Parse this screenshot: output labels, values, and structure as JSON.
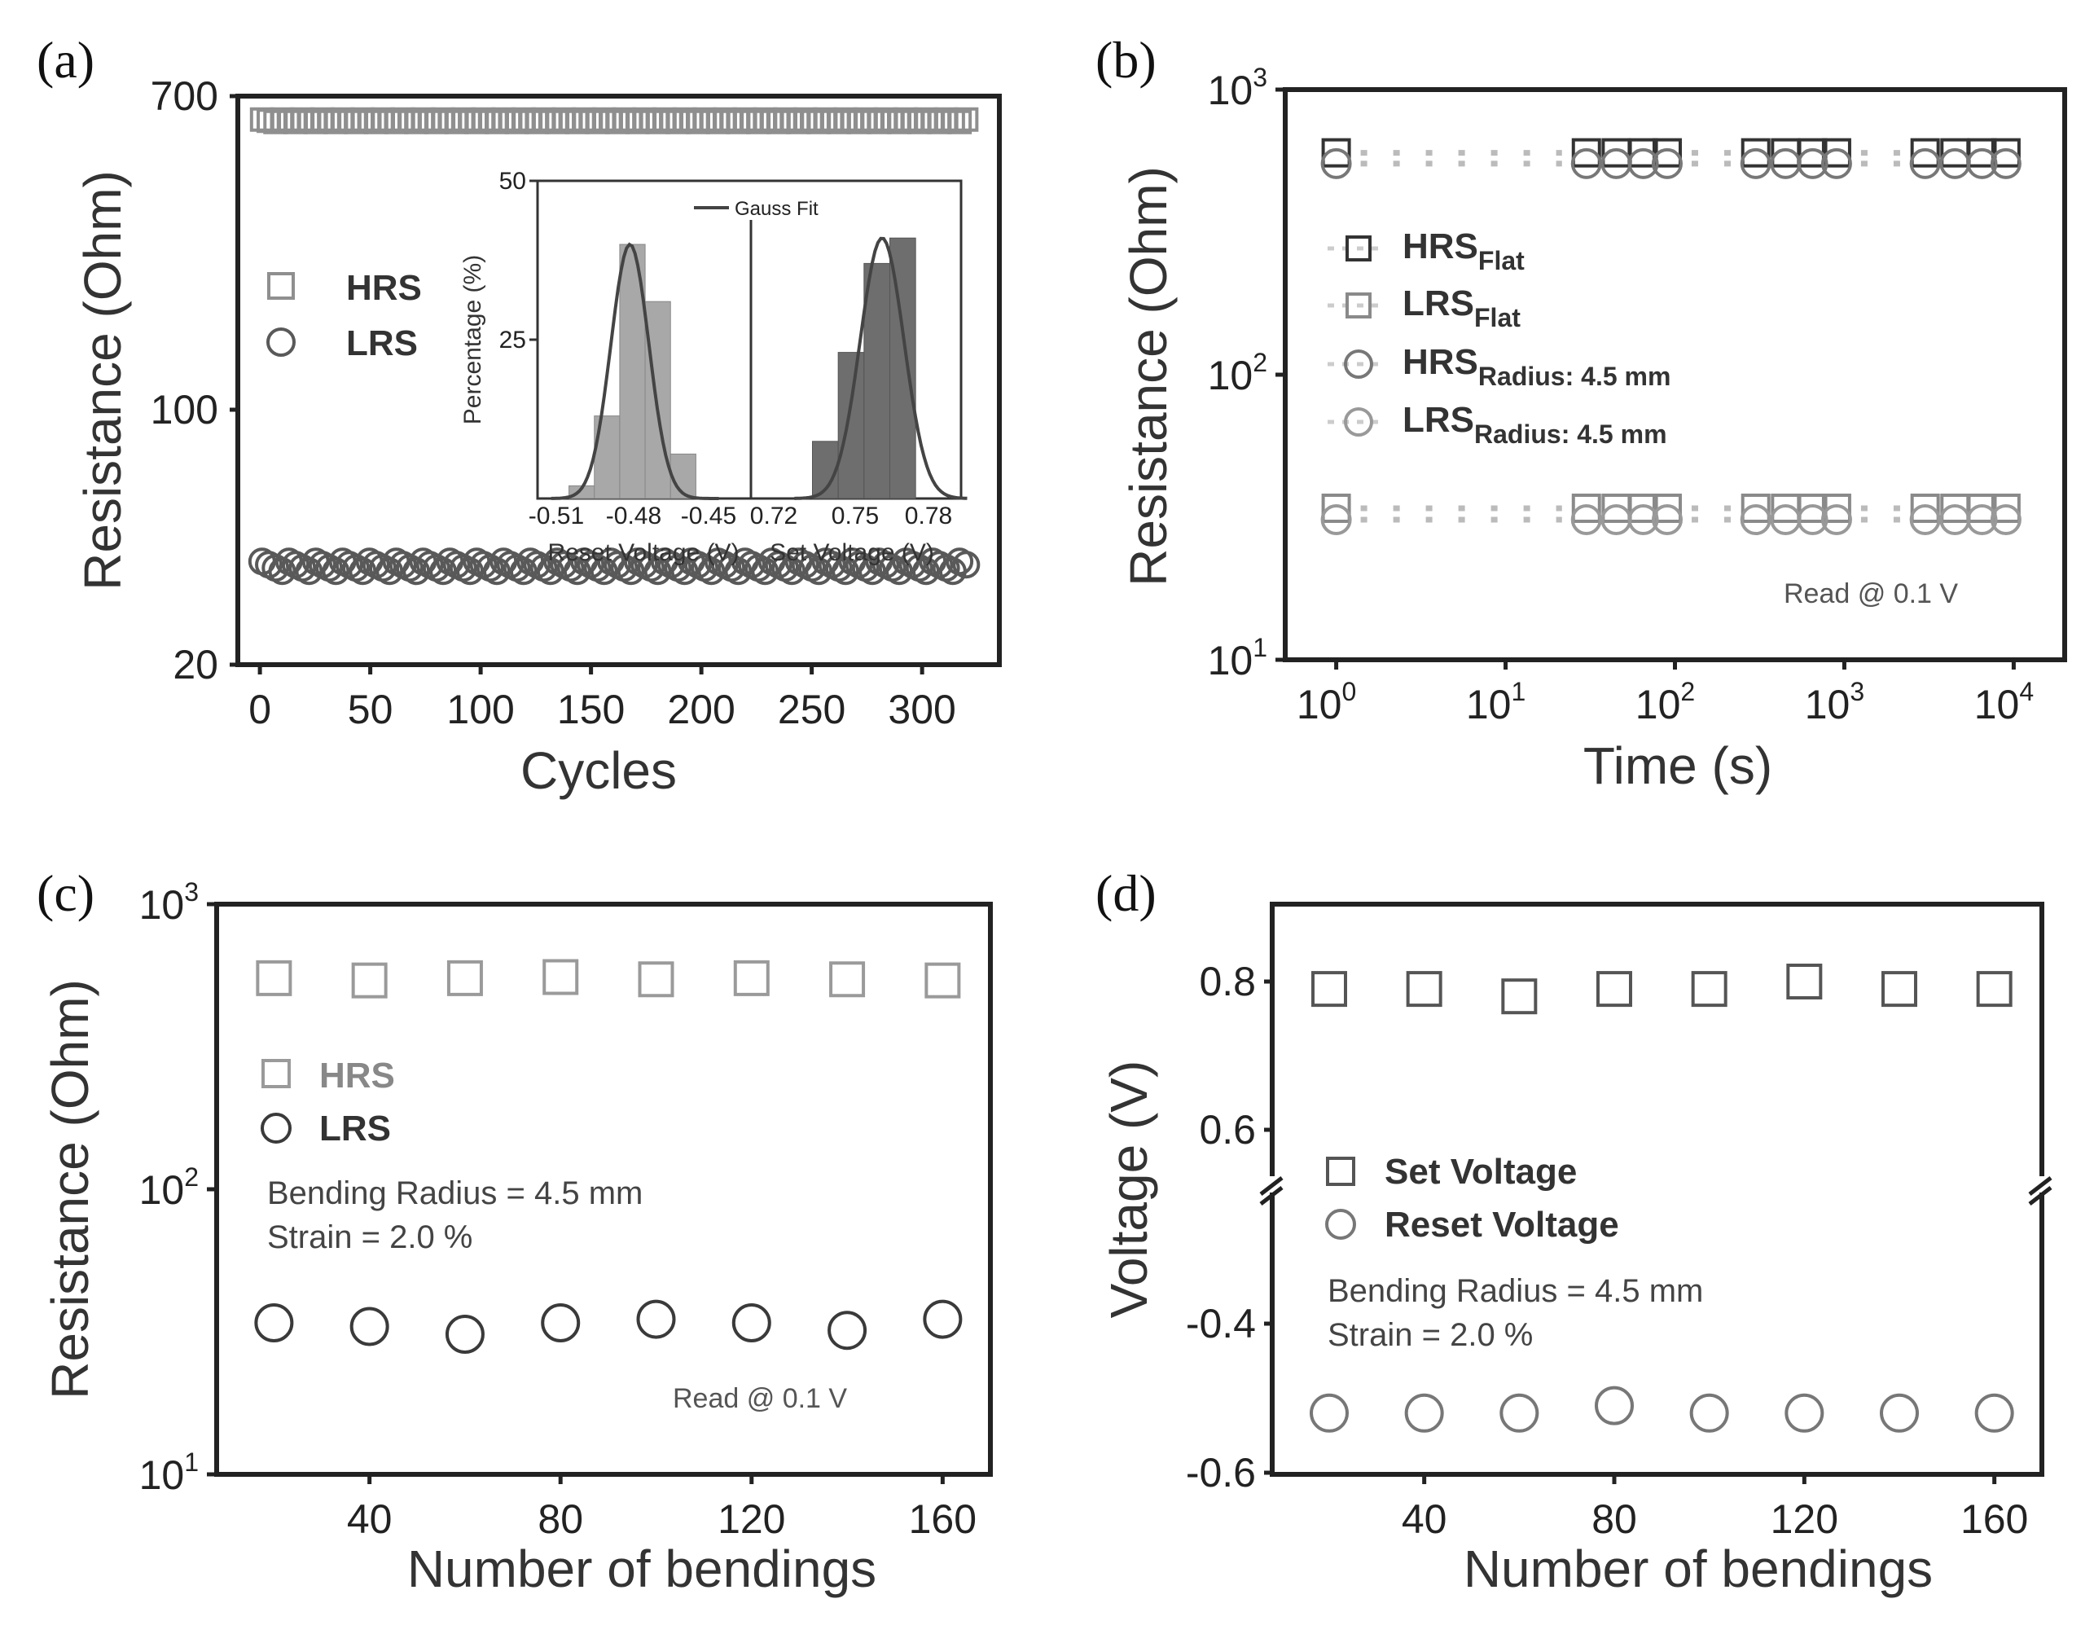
{
  "colors": {
    "hrs_a": "#8f8f8f",
    "lrs_a": "#595959",
    "dark": "#3a3a3a",
    "light": "#9a9a9a",
    "bar": "#a8a8a8",
    "bar_dark": "#6e6e6e"
  },
  "chart_data": [
    {
      "panel": "(a)",
      "type": "scatter",
      "xlabel": "Cycles",
      "ylabel": "Resistance (Ohm)",
      "xlim": [
        -10,
        335
      ],
      "ylim": [
        20,
        700
      ],
      "yscale": "log",
      "xticks": [
        "0",
        "50",
        "100",
        "150",
        "200",
        "250",
        "300"
      ],
      "yticks": [
        "20",
        "100",
        "700"
      ],
      "legend": [
        "HRS",
        "LRS"
      ],
      "series": [
        {
          "name": "HRS",
          "x_range": [
            1,
            320
          ],
          "count": 106,
          "value": 600
        },
        {
          "name": "LRS",
          "x_range": [
            1,
            320
          ],
          "count": 106,
          "value": 37
        }
      ]
    },
    {
      "panel": "(a) inset",
      "type": "bar",
      "ylabel": "Percentage (%)",
      "ylim": [
        0,
        50
      ],
      "yticks": [
        "25",
        "50"
      ],
      "legend": [
        "Gauss Fit"
      ],
      "reset": {
        "xlabel": "Reset  Voltage (V)",
        "xticks": [
          "-0.51",
          "-0.48",
          "-0.45"
        ],
        "bins": [
          -0.5,
          -0.49,
          -0.48,
          -0.47,
          -0.46
        ],
        "values": [
          2,
          13,
          40,
          31,
          7
        ]
      },
      "set": {
        "xlabel": "Set  Voltage (V)",
        "xticks": [
          "0.72",
          "0.75",
          "0.78"
        ],
        "bins": [
          0.74,
          0.75,
          0.76,
          0.77
        ],
        "values": [
          9,
          23,
          37,
          41
        ]
      }
    },
    {
      "panel": "(b)",
      "type": "scatter",
      "xlabel": "Time (s)",
      "ylabel": "Resistance (Ohm)",
      "xscale": "log",
      "yscale": "log",
      "xlim": [
        0.5,
        20000
      ],
      "ylim": [
        10,
        1000
      ],
      "xticks_base": [
        "10",
        "10",
        "10",
        "10",
        "10"
      ],
      "xticks_exp": [
        "0",
        "1",
        "2",
        "3",
        "4"
      ],
      "yticks_base": [
        "10",
        "10",
        "10"
      ],
      "yticks_exp": [
        "1",
        "2",
        "3"
      ],
      "legend": [
        {
          "main": "HRS",
          "sub": "Flat"
        },
        {
          "main": "LRS",
          "sub": "Flat"
        },
        {
          "main": "HRS",
          "sub": "Radius: 4.5 mm"
        },
        {
          "main": "LRS",
          "sub": "Radius: 4.5 mm"
        }
      ],
      "annotation": "Read @ 0.1 V",
      "x": [
        1,
        30,
        45,
        65,
        90,
        300,
        450,
        650,
        900,
        3000,
        4500,
        6500,
        9000
      ],
      "series": [
        {
          "name": "HRS Flat",
          "value": 600
        },
        {
          "name": "LRS Flat",
          "value": 34
        },
        {
          "name": "HRS Radius: 4.5 mm",
          "value": 550
        },
        {
          "name": "LRS Radius: 4.5 mm",
          "value": 31
        }
      ]
    },
    {
      "panel": "(c)",
      "type": "scatter",
      "xlabel": "Number of bendings",
      "ylabel": "Resistance (Ohm)",
      "yscale": "log",
      "xlim": [
        8,
        170
      ],
      "ylim": [
        10,
        1000
      ],
      "xticks": [
        "40",
        "80",
        "120",
        "160"
      ],
      "yticks_base": [
        "10",
        "10",
        "10"
      ],
      "yticks_exp": [
        "1",
        "2",
        "3"
      ],
      "legend": [
        "HRS",
        "LRS"
      ],
      "annotations": [
        "Bending Radius = 4.5 mm",
        "Strain = 2.0 %",
        "Read @ 0.1 V"
      ],
      "x": [
        20,
        40,
        60,
        80,
        100,
        120,
        140,
        160
      ],
      "series": [
        {
          "name": "HRS",
          "values": [
            550,
            540,
            550,
            555,
            545,
            550,
            545,
            540
          ]
        },
        {
          "name": "LRS",
          "values": [
            34,
            33,
            31,
            34,
            35,
            34,
            32,
            35
          ]
        }
      ]
    },
    {
      "panel": "(d)",
      "type": "scatter",
      "xlabel": "Number of bendings",
      "ylabel": "Voltage (V)",
      "xlim": [
        8,
        170
      ],
      "yticks": [
        "0.8",
        "0.6",
        "-0.4",
        "-0.6"
      ],
      "legend": [
        "Set Voltage",
        "Reset Voltage"
      ],
      "annotations": [
        "Bending Radius = 4.5 mm",
        "Strain = 2.0 %"
      ],
      "x": [
        20,
        40,
        60,
        80,
        100,
        120,
        140,
        160
      ],
      "series": [
        {
          "name": "Set Voltage",
          "values": [
            0.79,
            0.79,
            0.78,
            0.79,
            0.79,
            0.8,
            0.79,
            0.79
          ]
        },
        {
          "name": "Reset Voltage",
          "values": [
            -0.52,
            -0.52,
            -0.52,
            -0.51,
            -0.52,
            -0.52,
            -0.52,
            -0.52
          ]
        }
      ]
    }
  ],
  "panel_labels": [
    "(a)",
    "(b)",
    "(c)",
    "(d)"
  ]
}
